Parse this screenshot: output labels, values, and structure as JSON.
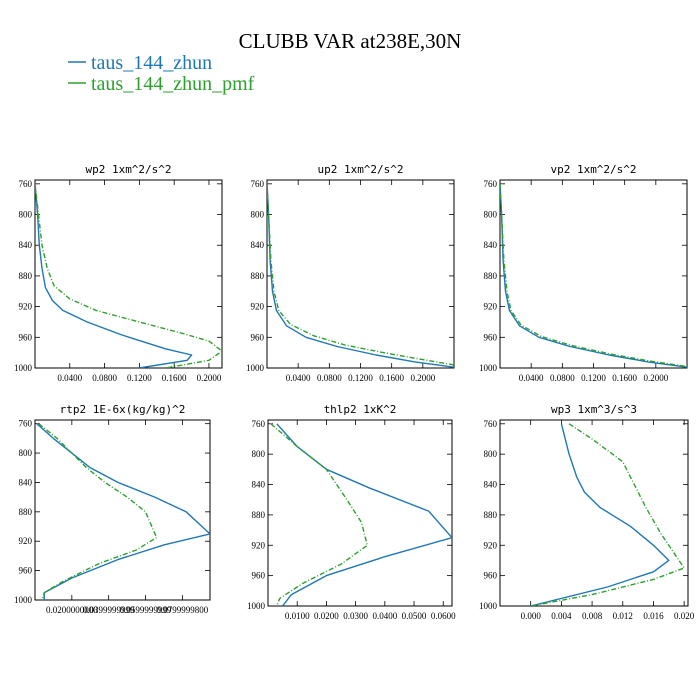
{
  "title": "CLUBB VAR at238E,30N",
  "legend": [
    {
      "label": "taus_144_zhun",
      "color": "#1f77b4"
    },
    {
      "label": "taus_144_zhun_pmf",
      "color": "#2ca02c"
    }
  ],
  "chart_data": [
    {
      "type": "line",
      "title": "wp2  1xm^2/s^2",
      "ylim": [
        1000,
        755
      ],
      "xlim": [
        0.0,
        0.215
      ],
      "yticks": [
        760,
        800,
        840,
        880,
        920,
        960,
        1000
      ],
      "xticks": [
        0.04,
        0.08,
        0.12,
        0.16,
        0.2
      ],
      "xtick_labels": [
        "0.0400",
        "0.0800",
        "0.1200",
        "0.1600",
        "0.2000"
      ],
      "series": [
        {
          "name": "taus_144_zhun",
          "style": "solid",
          "points": [
            [
              0.0,
              760
            ],
            [
              0.003,
              800
            ],
            [
              0.005,
              840
            ],
            [
              0.008,
              870
            ],
            [
              0.012,
              895
            ],
            [
              0.02,
              912
            ],
            [
              0.032,
              925
            ],
            [
              0.06,
              940
            ],
            [
              0.1,
              957
            ],
            [
              0.15,
              975
            ],
            [
              0.18,
              983
            ],
            [
              0.175,
              990
            ],
            [
              0.12,
              1000
            ]
          ]
        },
        {
          "name": "taus_144_zhun_pmf",
          "style": "dashed",
          "points": [
            [
              0.0,
              760
            ],
            [
              0.004,
              800
            ],
            [
              0.008,
              840
            ],
            [
              0.014,
              870
            ],
            [
              0.022,
              893
            ],
            [
              0.04,
              910
            ],
            [
              0.07,
              925
            ],
            [
              0.12,
              940
            ],
            [
              0.17,
              955
            ],
            [
              0.2,
              965
            ],
            [
              0.215,
              978
            ],
            [
              0.2,
              990
            ],
            [
              0.15,
              1000
            ]
          ]
        }
      ]
    },
    {
      "type": "line",
      "title": "up2  1xm^2/s^2",
      "ylim": [
        1000,
        755
      ],
      "xlim": [
        0.0,
        0.24
      ],
      "yticks": [
        760,
        800,
        840,
        880,
        920,
        960,
        1000
      ],
      "xticks": [
        0.04,
        0.08,
        0.12,
        0.16,
        0.2
      ],
      "xtick_labels": [
        "0.0400",
        "0.0800",
        "0.1200",
        "0.1600",
        "0.2000"
      ],
      "series": [
        {
          "name": "taus_144_zhun",
          "style": "solid",
          "points": [
            [
              0.0,
              760
            ],
            [
              0.002,
              800
            ],
            [
              0.004,
              860
            ],
            [
              0.007,
              900
            ],
            [
              0.012,
              925
            ],
            [
              0.025,
              945
            ],
            [
              0.05,
              960
            ],
            [
              0.09,
              972
            ],
            [
              0.14,
              983
            ],
            [
              0.19,
              992
            ],
            [
              0.24,
              999
            ]
          ]
        },
        {
          "name": "taus_144_zhun_pmf",
          "style": "dashed",
          "points": [
            [
              0.0,
              760
            ],
            [
              0.002,
              800
            ],
            [
              0.005,
              860
            ],
            [
              0.009,
              900
            ],
            [
              0.015,
              925
            ],
            [
              0.03,
              943
            ],
            [
              0.06,
              958
            ],
            [
              0.1,
              970
            ],
            [
              0.15,
              980
            ],
            [
              0.2,
              989
            ],
            [
              0.24,
              996
            ]
          ]
        }
      ]
    },
    {
      "type": "line",
      "title": "vp2  1xm^2/s^2",
      "ylim": [
        1000,
        755
      ],
      "xlim": [
        0.0,
        0.24
      ],
      "yticks": [
        760,
        800,
        840,
        880,
        920,
        960,
        1000
      ],
      "xticks": [
        0.04,
        0.08,
        0.12,
        0.16,
        0.2
      ],
      "xtick_labels": [
        "0.0400",
        "0.0800",
        "0.1200",
        "0.1600",
        "0.2000"
      ],
      "series": [
        {
          "name": "taus_144_zhun",
          "style": "solid",
          "points": [
            [
              0.0,
              760
            ],
            [
              0.002,
              800
            ],
            [
              0.004,
              860
            ],
            [
              0.007,
              900
            ],
            [
              0.012,
              925
            ],
            [
              0.025,
              945
            ],
            [
              0.05,
              960
            ],
            [
              0.09,
              972
            ],
            [
              0.14,
              983
            ],
            [
              0.19,
              992
            ],
            [
              0.24,
              999
            ]
          ]
        },
        {
          "name": "taus_144_zhun_pmf",
          "style": "dashed",
          "points": [
            [
              0.0,
              760
            ],
            [
              0.002,
              800
            ],
            [
              0.005,
              860
            ],
            [
              0.009,
              900
            ],
            [
              0.014,
              925
            ],
            [
              0.027,
              944
            ],
            [
              0.053,
              959
            ],
            [
              0.093,
              971
            ],
            [
              0.143,
              982
            ],
            [
              0.193,
              991
            ],
            [
              0.24,
              998
            ]
          ]
        }
      ]
    },
    {
      "type": "line",
      "title": "rtp2  1E-6x(kg/kg)^2",
      "ylim": [
        1000,
        755
      ],
      "xlim": [
        0.0,
        0.095
      ],
      "yticks": [
        760,
        800,
        840,
        880,
        920,
        960,
        1000
      ],
      "xticks": [
        0.02,
        0.04,
        0.06,
        0.08
      ],
      "xtick_labels": [
        "0.0200000000",
        "0.0399999999",
        "0.0599999999",
        "0.0799999800"
      ],
      "series": [
        {
          "name": "taus_144_zhun",
          "style": "solid",
          "points": [
            [
              0.001,
              760
            ],
            [
              0.01,
              780
            ],
            [
              0.02,
              800
            ],
            [
              0.03,
              820
            ],
            [
              0.045,
              840
            ],
            [
              0.065,
              860
            ],
            [
              0.082,
              880
            ],
            [
              0.095,
              910
            ],
            [
              0.07,
              925
            ],
            [
              0.045,
              945
            ],
            [
              0.02,
              970
            ],
            [
              0.005,
              990
            ],
            [
              0.005,
              1000
            ]
          ]
        },
        {
          "name": "taus_144_zhun_pmf",
          "style": "dashed",
          "points": [
            [
              0.002,
              760
            ],
            [
              0.012,
              780
            ],
            [
              0.02,
              800
            ],
            [
              0.028,
              820
            ],
            [
              0.038,
              840
            ],
            [
              0.05,
              860
            ],
            [
              0.06,
              880
            ],
            [
              0.066,
              915
            ],
            [
              0.055,
              932
            ],
            [
              0.035,
              950
            ],
            [
              0.015,
              975
            ],
            [
              0.005,
              990
            ],
            [
              0.004,
              1000
            ]
          ]
        }
      ]
    },
    {
      "type": "line",
      "title": "thlp2  1xK^2",
      "ylim": [
        1000,
        755
      ],
      "xlim": [
        0.0,
        0.063
      ],
      "yticks": [
        760,
        800,
        840,
        880,
        920,
        960,
        1000
      ],
      "xticks": [
        0.01,
        0.02,
        0.03,
        0.04,
        0.05,
        0.06
      ],
      "xtick_labels": [
        "0.0100",
        "0.0200",
        "0.0300",
        "0.0400",
        "0.0500",
        "0.0600"
      ],
      "series": [
        {
          "name": "taus_144_zhun",
          "style": "solid",
          "points": [
            [
              0.003,
              760
            ],
            [
              0.01,
              790
            ],
            [
              0.02,
              820
            ],
            [
              0.035,
              845
            ],
            [
              0.055,
              875
            ],
            [
              0.063,
              910
            ],
            [
              0.04,
              935
            ],
            [
              0.02,
              960
            ],
            [
              0.008,
              985
            ],
            [
              0.005,
              1000
            ]
          ]
        },
        {
          "name": "taus_144_zhun_pmf",
          "style": "dashed",
          "points": [
            [
              0.001,
              760
            ],
            [
              0.01,
              790
            ],
            [
              0.02,
              820
            ],
            [
              0.027,
              860
            ],
            [
              0.032,
              890
            ],
            [
              0.034,
              920
            ],
            [
              0.025,
              945
            ],
            [
              0.012,
              970
            ],
            [
              0.004,
              990
            ],
            [
              0.003,
              1000
            ]
          ]
        }
      ]
    },
    {
      "type": "line",
      "title": "wp3  1xm^3/s^3",
      "ylim": [
        1000,
        755
      ],
      "xlim": [
        -0.004,
        0.0205
      ],
      "yticks": [
        760,
        800,
        840,
        880,
        920,
        960,
        1000
      ],
      "xticks": [
        0.0,
        0.004,
        0.008,
        0.012,
        0.016,
        0.02
      ],
      "xtick_labels": [
        "0.000",
        "0.004",
        "0.008",
        "0.012",
        "0.016",
        "0.020"
      ],
      "series": [
        {
          "name": "taus_144_zhun",
          "style": "solid",
          "points": [
            [
              0.004,
              760
            ],
            [
              0.005,
              800
            ],
            [
              0.006,
              830
            ],
            [
              0.007,
              850
            ],
            [
              0.009,
              870
            ],
            [
              0.013,
              895
            ],
            [
              0.016,
              920
            ],
            [
              0.018,
              940
            ],
            [
              0.016,
              955
            ],
            [
              0.01,
              975
            ],
            [
              0.0,
              1000
            ]
          ]
        },
        {
          "name": "taus_144_zhun_pmf",
          "style": "dashed",
          "points": [
            [
              0.005,
              760
            ],
            [
              0.008,
              780
            ],
            [
              0.012,
              810
            ],
            [
              0.013,
              830
            ],
            [
              0.015,
              870
            ],
            [
              0.017,
              905
            ],
            [
              0.019,
              935
            ],
            [
              0.02,
              950
            ],
            [
              0.016,
              965
            ],
            [
              0.008,
              985
            ],
            [
              0.0,
              1000
            ]
          ]
        }
      ]
    }
  ]
}
